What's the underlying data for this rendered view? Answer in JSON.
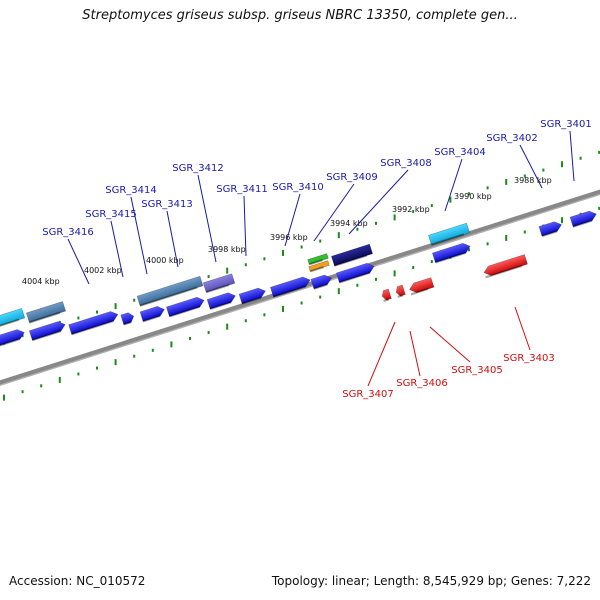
{
  "header": {
    "title": "Streptomyces griseus subsp. griseus NBRC 13350, complete gen..."
  },
  "footer": {
    "accession": "Accession: NC_010572",
    "stats": "Topology: linear; Length: 8,545,929 bp; Genes: 7,222"
  },
  "colors": {
    "forward": "#1010ee",
    "reverse": "#ee1010",
    "ruler_ticks": "#1a8c1a",
    "backbone": "#888888",
    "forward_label": "#1a1aa8",
    "reverse_label": "#cc1010"
  },
  "ruler_labels": [
    "4004 kbp",
    "4002 kbp",
    "4000 kbp",
    "3998 kbp",
    "3996 kbp",
    "3994 kbp",
    "3992 kbp",
    "3990 kbp",
    "3988 kbp"
  ],
  "forward_gene_labels": [
    "SGR_3416",
    "SGR_3415",
    "SGR_3414",
    "SGR_3413",
    "SGR_3412",
    "SGR_3411",
    "SGR_3410",
    "SGR_3409",
    "SGR_3408",
    "SGR_3404",
    "SGR_3402",
    "SGR_3401"
  ],
  "reverse_gene_labels": [
    "SGR_3407",
    "SGR_3406",
    "SGR_3405",
    "SGR_3403"
  ]
}
